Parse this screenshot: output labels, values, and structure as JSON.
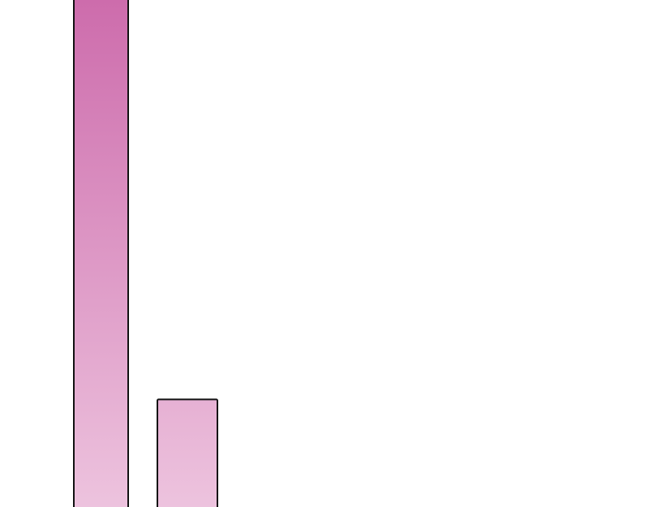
{
  "chart_data": {
    "type": "bar",
    "categories": [
      "",
      ""
    ],
    "values": [
      100,
      21.6
    ],
    "ylim": [
      0,
      100
    ],
    "grid": false,
    "bar_gradient": {
      "top": "#cd6cac",
      "bottom": "#edc3de"
    },
    "bar_stroke": "#111111"
  }
}
